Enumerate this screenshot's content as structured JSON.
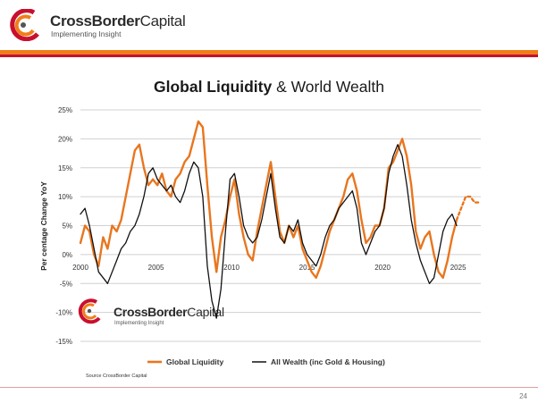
{
  "header": {
    "brand_bold": "CrossBorder",
    "brand_rest": "Capital",
    "tagline": "Implementing Insight"
  },
  "slide": {
    "title_bold": "Global Liquidity",
    "title_rest": " & World Wealth",
    "source": "Source CrossBorder Capital",
    "page_number": "24"
  },
  "watermark": {
    "brand_bold": "CrossBorder",
    "brand_rest": "Capital",
    "tagline": "Implementing Insight"
  },
  "colors": {
    "liquidity": "#e8761f",
    "wealth": "#111111",
    "grid": "#d0d0d0"
  },
  "chart_data": {
    "type": "line",
    "title": "Global Liquidity & World Wealth",
    "ylabel": "Per centage Change YoY",
    "xlabel": "",
    "xlim": [
      2000,
      2026.5
    ],
    "ylim": [
      -15,
      25
    ],
    "yticks": [
      25,
      20,
      15,
      10,
      5,
      0,
      -5,
      -10,
      -15
    ],
    "ytick_labels": [
      "25%",
      "20%",
      "15%",
      "10%",
      "5%",
      "0%",
      "-5%",
      "-10%",
      "-15%"
    ],
    "xticks": [
      2000,
      2005,
      2010,
      2015,
      2020,
      2025
    ],
    "xtick_labels": [
      "2000",
      "2005",
      "2010",
      "2015",
      "2020",
      "2025"
    ],
    "grid": true,
    "legend": "bottom",
    "series": [
      {
        "name": "Global Liquidity",
        "color": "#e8761f",
        "x": [
          2000.0,
          2000.3,
          2000.6,
          2000.9,
          2001.2,
          2001.5,
          2001.8,
          2002.1,
          2002.4,
          2002.7,
          2003.0,
          2003.3,
          2003.6,
          2003.9,
          2004.2,
          2004.5,
          2004.8,
          2005.1,
          2005.4,
          2005.7,
          2006.0,
          2006.3,
          2006.6,
          2006.9,
          2007.2,
          2007.5,
          2007.8,
          2008.1,
          2008.4,
          2008.7,
          2009.0,
          2009.3,
          2009.6,
          2009.9,
          2010.2,
          2010.5,
          2010.8,
          2011.1,
          2011.4,
          2011.7,
          2012.0,
          2012.3,
          2012.6,
          2012.9,
          2013.2,
          2013.5,
          2013.8,
          2014.1,
          2014.4,
          2014.7,
          2015.0,
          2015.3,
          2015.6,
          2015.9,
          2016.2,
          2016.5,
          2016.8,
          2017.1,
          2017.4,
          2017.7,
          2018.0,
          2018.3,
          2018.6,
          2018.9,
          2019.2,
          2019.5,
          2019.8,
          2020.1,
          2020.4,
          2020.7,
          2021.0,
          2021.3,
          2021.6,
          2021.9,
          2022.2,
          2022.5,
          2022.8,
          2023.1,
          2023.4,
          2023.7,
          2024.0,
          2024.3,
          2024.6,
          2024.9
        ],
        "values": [
          2,
          5,
          4,
          0,
          -2,
          3,
          1,
          5,
          4,
          6,
          10,
          14,
          18,
          19,
          15,
          12,
          13,
          12,
          14,
          11,
          10,
          13,
          14,
          16,
          17,
          20,
          23,
          22,
          12,
          3,
          -3,
          3,
          6,
          10,
          13,
          7,
          3,
          0,
          -1,
          4,
          8,
          12,
          16,
          10,
          4,
          2,
          5,
          3,
          5,
          1,
          -1,
          -3,
          -4,
          -2,
          1,
          4,
          6,
          8,
          10,
          13,
          14,
          11,
          6,
          2,
          3,
          5,
          5,
          8,
          15,
          16,
          18,
          20,
          17,
          12,
          4,
          1,
          3,
          4,
          0,
          -3,
          -4,
          -1,
          3,
          6
        ]
      },
      {
        "name": "Global Liquidity (projected)",
        "color": "#e8761f",
        "dashed": true,
        "x": [
          2024.9,
          2025.2,
          2025.5,
          2025.8,
          2026.1,
          2026.4
        ],
        "values": [
          6,
          8,
          10,
          10,
          9,
          9
        ]
      },
      {
        "name": "All Wealth (inc Gold & Housing)",
        "color": "#111111",
        "x": [
          2000.0,
          2000.3,
          2000.6,
          2000.9,
          2001.2,
          2001.5,
          2001.8,
          2002.1,
          2002.4,
          2002.7,
          2003.0,
          2003.3,
          2003.6,
          2003.9,
          2004.2,
          2004.5,
          2004.8,
          2005.1,
          2005.4,
          2005.7,
          2006.0,
          2006.3,
          2006.6,
          2006.9,
          2007.2,
          2007.5,
          2007.8,
          2008.1,
          2008.4,
          2008.7,
          2009.0,
          2009.3,
          2009.6,
          2009.9,
          2010.2,
          2010.5,
          2010.8,
          2011.1,
          2011.4,
          2011.7,
          2012.0,
          2012.3,
          2012.6,
          2012.9,
          2013.2,
          2013.5,
          2013.8,
          2014.1,
          2014.4,
          2014.7,
          2015.0,
          2015.3,
          2015.6,
          2015.9,
          2016.2,
          2016.5,
          2016.8,
          2017.1,
          2017.4,
          2017.7,
          2018.0,
          2018.3,
          2018.6,
          2018.9,
          2019.2,
          2019.5,
          2019.8,
          2020.1,
          2020.4,
          2020.7,
          2021.0,
          2021.3,
          2021.6,
          2021.9,
          2022.2,
          2022.5,
          2022.8,
          2023.1,
          2023.4,
          2023.7,
          2024.0,
          2024.3,
          2024.6,
          2024.9
        ],
        "values": [
          7,
          8,
          5,
          1,
          -3,
          -4,
          -5,
          -3,
          -1,
          1,
          2,
          4,
          5,
          7,
          10,
          14,
          15,
          13,
          12,
          11,
          12,
          10,
          9,
          11,
          14,
          16,
          15,
          10,
          -2,
          -8,
          -11,
          -6,
          4,
          13,
          14,
          10,
          5,
          3,
          2,
          3,
          6,
          10,
          14,
          8,
          3,
          2,
          5,
          4,
          6,
          2,
          0,
          -1,
          -2,
          0,
          3,
          5,
          6,
          8,
          9,
          10,
          11,
          8,
          2,
          0,
          2,
          4,
          5,
          8,
          14,
          17,
          19,
          17,
          12,
          6,
          2,
          -1,
          -3,
          -5,
          -4,
          0,
          4,
          6,
          7,
          5
        ]
      }
    ],
    "legend_entries": [
      "Global Liquidity",
      "All Wealth (inc Gold & Housing)"
    ]
  }
}
